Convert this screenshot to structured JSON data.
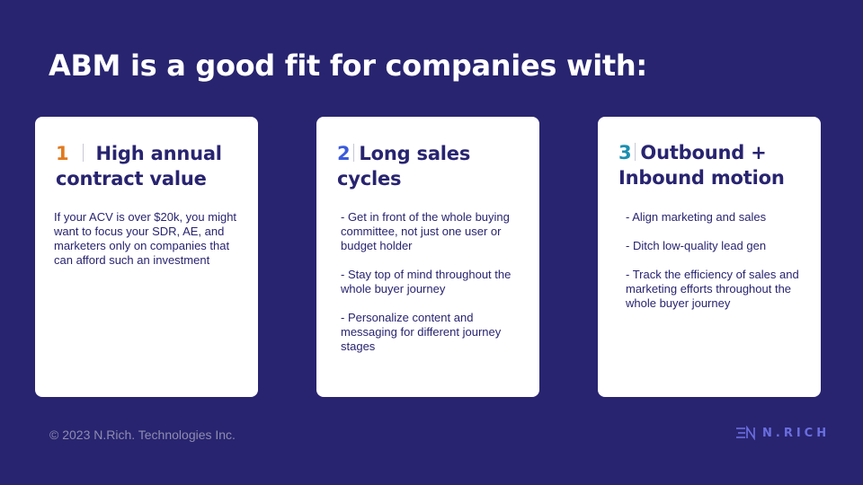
{
  "title": "ABM is a good fit for companies with:",
  "colors": {
    "background": "#282470",
    "card": "#ffffff",
    "heading": "#282470",
    "num1": "#e07a1f",
    "num2": "#3b5bdb",
    "num3": "#1a8fb0",
    "brand": "#6b6ee0"
  },
  "cards": [
    {
      "number": "1",
      "heading": "High annual contract value",
      "text": "If your ACV is over $20k, you might want to focus your SDR, AE, and marketers only on companies that can afford such an investment"
    },
    {
      "number": "2",
      "heading": "Long sales cycles",
      "bullets": [
        "- Get in front of the whole buying committee, not just one user or budget holder",
        "- Stay top of mind throughout the whole buyer journey",
        "- Personalize content and messaging for different journey stages"
      ]
    },
    {
      "number": "3",
      "heading": "Outbound + Inbound motion",
      "bullets": [
        "- Align marketing and sales",
        "- Ditch low-quality lead gen",
        "- Track the efficiency of sales and marketing efforts throughout the whole buyer journey"
      ]
    }
  ],
  "footer": {
    "copyright": "© 2023 N.Rich. Technologies Inc.",
    "brand": "N.RICH",
    "brand_icon": "nrich-logo-icon"
  }
}
